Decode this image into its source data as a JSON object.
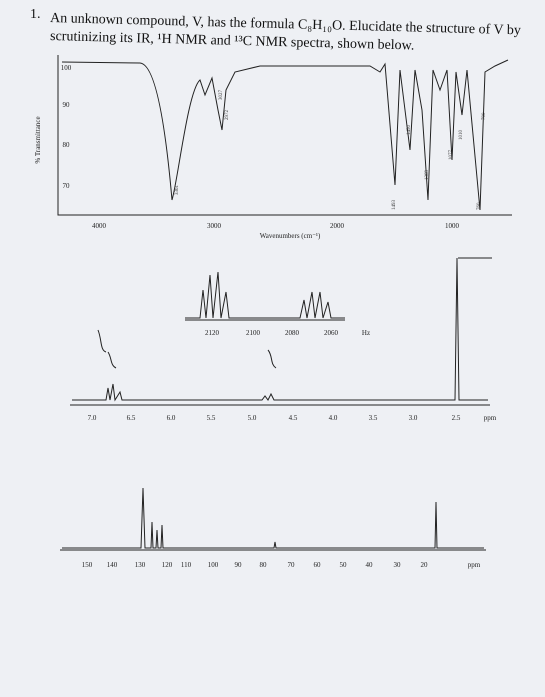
{
  "question": {
    "number": "1.",
    "line1": "An unknown compound, V, has the formula C₈H₁₀O. Elucidate the structure of V by",
    "line2": "scrutinizing its IR, ¹H NMR and ¹³C NMR spectra, shown below."
  },
  "ir": {
    "y_label": "% Transmittance",
    "x_label": "Wavenumbers (cm⁻¹)",
    "yticks": [
      "100",
      "90",
      "80",
      "70"
    ],
    "xticks": [
      "4000",
      "3000",
      "2000",
      "1000"
    ],
    "peak_labels": [
      "3361",
      "3027",
      "2972",
      "1493",
      "1450",
      "1369",
      "1077",
      "1010",
      "760",
      "700"
    ]
  },
  "h_nmr": {
    "xticks": [
      "7.0",
      "6.5",
      "6.0",
      "5.5",
      "5.0",
      "4.5",
      "4.0",
      "3.5",
      "3.0",
      "2.5",
      "ppm"
    ],
    "inset_ticks": [
      "2120",
      "2100",
      "2080",
      "2060",
      "Hz"
    ]
  },
  "c_nmr": {
    "xticks": [
      "150",
      "140",
      "130",
      "120",
      "110",
      "100",
      "90",
      "80",
      "70",
      "60",
      "50",
      "40",
      "30",
      "20",
      "ppm"
    ]
  }
}
